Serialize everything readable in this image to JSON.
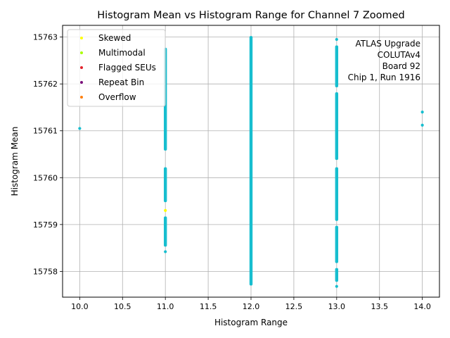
{
  "chart_data": {
    "type": "scatter",
    "title": "Histogram Mean vs Histogram Range for Channel 7 Zoomed",
    "xlabel": "Histogram Range",
    "ylabel": "Histogram Mean",
    "xlim": [
      9.8,
      14.2
    ],
    "ylim": [
      15757.45,
      15763.25
    ],
    "xticks": [
      10.0,
      10.5,
      11.0,
      11.5,
      12.0,
      12.5,
      13.0,
      13.5,
      14.0
    ],
    "xtick_labels": [
      "10.0",
      "10.5",
      "11.0",
      "11.5",
      "12.0",
      "12.5",
      "13.0",
      "13.5",
      "14.0"
    ],
    "yticks": [
      15758,
      15759,
      15760,
      15761,
      15762,
      15763
    ],
    "ytick_labels": [
      "15758",
      "15759",
      "15760",
      "15761",
      "15762",
      "15763"
    ],
    "grid": true,
    "legend_position": "top-left",
    "series": [
      {
        "name": "Skewed",
        "color": "#ffff00",
        "points": [
          [
            11.0,
            15759.3
          ]
        ]
      },
      {
        "name": "Multimodal",
        "color": "#aaff00",
        "points": []
      },
      {
        "name": "Flagged SEUs",
        "color": "#e3232c",
        "points": []
      },
      {
        "name": "Repeat Bin",
        "color": "#7a0f7a",
        "points": []
      },
      {
        "name": "Overflow",
        "color": "#ff7f0e",
        "points": []
      }
    ],
    "main_series": {
      "color": "#17becf",
      "isolated_points": [
        [
          10.0,
          15761.05
        ],
        [
          14.0,
          15761.4
        ],
        [
          14.0,
          15761.12
        ],
        [
          11.0,
          15758.42
        ],
        [
          13.0,
          15757.68
        ],
        [
          13.0,
          15762.95
        ]
      ],
      "column_segments": [
        {
          "x": 11.0,
          "from": 15758.55,
          "to": 15759.15
        },
        {
          "x": 11.0,
          "from": 15759.5,
          "to": 15760.2
        },
        {
          "x": 11.0,
          "from": 15760.6,
          "to": 15762.0
        },
        {
          "x": 11.0,
          "from": 15762.0,
          "to": 15762.75
        },
        {
          "x": 12.0,
          "from": 15757.72,
          "to": 15763.0
        },
        {
          "x": 13.0,
          "from": 15757.8,
          "to": 15758.05
        },
        {
          "x": 13.0,
          "from": 15758.2,
          "to": 15758.95
        },
        {
          "x": 13.0,
          "from": 15759.1,
          "to": 15760.2
        },
        {
          "x": 13.0,
          "from": 15760.4,
          "to": 15761.8
        },
        {
          "x": 13.0,
          "from": 15761.95,
          "to": 15762.8
        }
      ]
    },
    "annotation": [
      "ATLAS Upgrade",
      "COLUTAv4",
      "Board 92",
      "Chip 1, Run 1916"
    ]
  }
}
